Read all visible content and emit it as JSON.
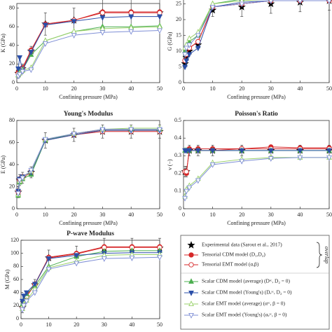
{
  "chart_data": [
    {
      "type": "line",
      "ylabel": "K (GPa)",
      "xlabel": "Confining pressure (MPa)",
      "x": [
        0.5,
        1,
        2,
        5,
        10,
        20,
        30,
        40,
        50
      ],
      "xlim": [
        0,
        50
      ],
      "xticks": [
        0,
        10,
        20,
        30,
        40,
        50
      ],
      "ylim": [
        0,
        85
      ],
      "yticks": [
        0,
        20,
        40,
        60,
        80
      ],
      "series": [
        {
          "name": "Experimental data (Sarout et al., 2017)",
          "color": "#000000",
          "marker": "star",
          "line": false,
          "values": [
            10,
            12,
            15,
            34,
            63,
            67,
            75,
            75,
            75
          ],
          "errors": [
            5,
            5,
            5,
            5,
            12,
            13,
            14,
            15,
            15
          ]
        },
        {
          "name": "Tensorial CDM model (D₁,D₂)",
          "color": "#d62728",
          "marker": "circle",
          "values": [
            11,
            13,
            16,
            35,
            63,
            67,
            76,
            76,
            76
          ]
        },
        {
          "name": "Tensorial EMT model (α,β)",
          "color": "#d62728",
          "marker": "circle-open",
          "values": [
            10,
            12,
            15,
            34,
            62,
            67,
            75,
            75,
            75
          ]
        },
        {
          "name": "Scalar CDM model (average)  (Dˢᶜ, D₂ = 0)",
          "color": "#4caf50",
          "marker": "tri-up",
          "values": [
            8,
            12,
            14,
            30,
            45,
            55,
            60,
            60,
            61
          ]
        },
        {
          "name": "Scalar CDM model (Young's)  (Dₑˢᶜ, D₂ = 0)",
          "color": "#2b4fa8",
          "marker": "tri-down",
          "values": [
            15,
            27,
            13,
            33,
            62,
            66,
            70,
            71,
            71
          ]
        },
        {
          "name": "Scalar EMT model (average)  (αˢᶜ, β = 0)",
          "color": "#9ad16b",
          "marker": "tri-up-open",
          "values": [
            8,
            10,
            13,
            16,
            45,
            55,
            58,
            59,
            60
          ]
        },
        {
          "name": "Scalar EMT model (Young's)  (αₑˢᶜ, β = 0)",
          "color": "#7f8fd6",
          "marker": "tri-down-open",
          "values": [
            7,
            9,
            12,
            14,
            42,
            51,
            54,
            55,
            56
          ]
        }
      ]
    },
    {
      "type": "line",
      "ylabel": "G (GPa)",
      "xlabel": "Confining pressure (MPa)",
      "x": [
        0.5,
        1,
        2,
        5,
        10,
        20,
        30,
        40,
        50
      ],
      "xlim": [
        0,
        50
      ],
      "xticks": [
        0,
        10,
        20,
        30,
        40,
        50
      ],
      "ylim": [
        0,
        28
      ],
      "yticks": [
        0,
        5,
        10,
        15,
        20,
        25
      ],
      "series": [
        {
          "color": "#000000",
          "marker": "star",
          "line": false,
          "values": [
            6,
            8,
            10,
            12,
            23,
            24,
            25,
            25.5,
            26
          ],
          "errors": [
            1,
            1,
            1,
            1,
            2,
            3,
            3,
            3,
            3
          ]
        },
        {
          "color": "#d62728",
          "marker": "circle",
          "values": [
            7,
            9,
            11,
            13,
            24,
            25,
            26,
            26,
            26
          ]
        },
        {
          "color": "#d62728",
          "marker": "circle-open",
          "values": [
            7,
            9,
            11,
            13,
            24,
            25,
            26,
            26,
            26
          ]
        },
        {
          "color": "#4caf50",
          "marker": "tri-up",
          "values": [
            10,
            12,
            13,
            15,
            25,
            26.5,
            27,
            27,
            27
          ]
        },
        {
          "color": "#2b4fa8",
          "marker": "tri-down",
          "values": [
            5,
            7,
            9,
            11,
            24,
            25.5,
            26,
            26,
            26
          ]
        },
        {
          "color": "#9ad16b",
          "marker": "tri-up-open",
          "values": [
            11,
            12,
            14,
            16,
            25,
            26,
            26.5,
            27,
            27
          ]
        },
        {
          "color": "#7f8fd6",
          "marker": "tri-down-open",
          "values": [
            9,
            11,
            12,
            15,
            24,
            25,
            26,
            26,
            26
          ]
        }
      ]
    },
    {
      "type": "line",
      "title": "Young's Modulus",
      "ylabel": "E (GPa)",
      "xlabel": "Confining pressure (MPa)",
      "x": [
        0.5,
        1,
        2,
        5,
        10,
        20,
        30,
        40,
        50
      ],
      "xlim": [
        0,
        50
      ],
      "xticks": [
        0,
        10,
        20,
        30,
        40,
        50
      ],
      "ylim": [
        0,
        80
      ],
      "yticks": [
        0,
        20,
        40,
        60,
        80
      ],
      "series": [
        {
          "color": "#000000",
          "marker": "star",
          "line": false,
          "values": [
            15,
            26,
            28,
            33,
            62,
            67,
            70,
            70,
            70
          ],
          "errors": [
            5,
            5,
            5,
            5,
            7,
            6,
            6,
            6,
            6
          ]
        },
        {
          "color": "#d62728",
          "marker": "circle",
          "values": [
            16,
            27,
            29,
            34,
            62,
            68,
            71,
            71,
            71
          ]
        },
        {
          "color": "#d62728",
          "marker": "circle-open",
          "values": [
            15,
            26,
            28,
            33,
            62,
            67,
            70,
            70,
            70
          ]
        },
        {
          "color": "#4caf50",
          "marker": "tri-up",
          "values": [
            12,
            24,
            27,
            31,
            62,
            68,
            72,
            72,
            72
          ]
        },
        {
          "color": "#2b4fa8",
          "marker": "tri-down",
          "values": [
            16,
            27,
            29,
            33,
            62,
            67,
            71,
            71,
            71
          ]
        },
        {
          "color": "#9ad16b",
          "marker": "tri-up-open",
          "values": [
            13,
            25,
            28,
            34,
            63,
            68,
            72,
            73,
            73
          ]
        },
        {
          "color": "#7f8fd6",
          "marker": "tri-down-open",
          "values": [
            14,
            26,
            28,
            35,
            63,
            68,
            72,
            72,
            72
          ]
        }
      ]
    },
    {
      "type": "line",
      "title": "Poisson's Ratio",
      "ylabel": "ν (−)",
      "xlabel": "Confining pressure (MPa)",
      "x": [
        0.5,
        1,
        2,
        5,
        10,
        20,
        30,
        40,
        50
      ],
      "xlim": [
        0,
        50
      ],
      "xticks": [
        0,
        10,
        20,
        30,
        40,
        50
      ],
      "ylim": [
        0,
        0.5
      ],
      "yticks": [
        0,
        0.1,
        0.2,
        0.3,
        0.4,
        0.5
      ],
      "series": [
        {
          "color": "#000000",
          "marker": "star",
          "line": false,
          "values": [
            0.21,
            0.21,
            0.33,
            0.33,
            0.33,
            0.33,
            0.33,
            0.33,
            0.33
          ],
          "errors": [
            0.03,
            0.03,
            0.03,
            0.03,
            0.03,
            0.03,
            0.03,
            0.03,
            0.03
          ]
        },
        {
          "color": "#d62728",
          "marker": "circle",
          "values": [
            0.21,
            0.2,
            0.34,
            0.34,
            0.34,
            0.34,
            0.35,
            0.345,
            0.345
          ]
        },
        {
          "color": "#d62728",
          "marker": "circle-open",
          "values": [
            0.21,
            0.21,
            0.33,
            0.33,
            0.33,
            0.34,
            0.34,
            0.34,
            0.34
          ]
        },
        {
          "color": "#4caf50",
          "marker": "tri-up",
          "values": [
            0.33,
            0.33,
            0.33,
            0.33,
            0.33,
            0.33,
            0.33,
            0.33,
            0.33
          ]
        },
        {
          "color": "#2b4fa8",
          "marker": "tri-down",
          "values": [
            0.33,
            0.33,
            0.33,
            0.33,
            0.33,
            0.33,
            0.33,
            0.33,
            0.33
          ]
        },
        {
          "color": "#9ad16b",
          "marker": "tri-up-open",
          "values": [
            0.07,
            0.11,
            0.13,
            0.17,
            0.26,
            0.28,
            0.29,
            0.29,
            0.29
          ]
        },
        {
          "color": "#7f8fd6",
          "marker": "tri-down-open",
          "values": [
            0.06,
            0.1,
            0.12,
            0.16,
            0.25,
            0.27,
            0.285,
            0.29,
            0.29
          ]
        }
      ]
    },
    {
      "type": "line",
      "title": "P-wave Modulus",
      "ylabel": "M (GPa)",
      "x": [
        0.5,
        1,
        2,
        5,
        10,
        20,
        30,
        40,
        50
      ],
      "xlim": [
        0,
        50
      ],
      "xticks": [
        0,
        10,
        20,
        30,
        40,
        50
      ],
      "ylim": [
        0,
        120
      ],
      "yticks": [
        0,
        20,
        40,
        60,
        80,
        100,
        120
      ],
      "series": [
        {
          "color": "#000000",
          "marker": "star",
          "line": false,
          "values": [
            17,
            25,
            33,
            52,
            93,
            98,
            108,
            108,
            108
          ],
          "errors": [
            8,
            8,
            8,
            8,
            12,
            13,
            15,
            15,
            15
          ]
        },
        {
          "color": "#d62728",
          "marker": "circle",
          "values": [
            18,
            27,
            35,
            53,
            94,
            100,
            110,
            110,
            110
          ]
        },
        {
          "color": "#d62728",
          "marker": "circle-open",
          "values": [
            17,
            26,
            34,
            52,
            93,
            99,
            109,
            109,
            109
          ]
        },
        {
          "color": "#4caf50",
          "marker": "tri-up",
          "values": [
            22,
            30,
            38,
            50,
            80,
            95,
            103,
            104,
            104
          ]
        },
        {
          "color": "#2b4fa8",
          "marker": "tri-down",
          "values": [
            27,
            35,
            40,
            53,
            92,
            97,
            100,
            101,
            101
          ]
        },
        {
          "color": "#9ad16b",
          "marker": "tri-up-open",
          "values": [
            15,
            22,
            28,
            45,
            78,
            88,
            97,
            98,
            98
          ]
        },
        {
          "color": "#7f8fd6",
          "marker": "tri-down-open",
          "values": [
            14,
            20,
            27,
            40,
            76,
            85,
            92,
            93,
            94
          ]
        }
      ]
    }
  ],
  "legend_note": "overlap"
}
